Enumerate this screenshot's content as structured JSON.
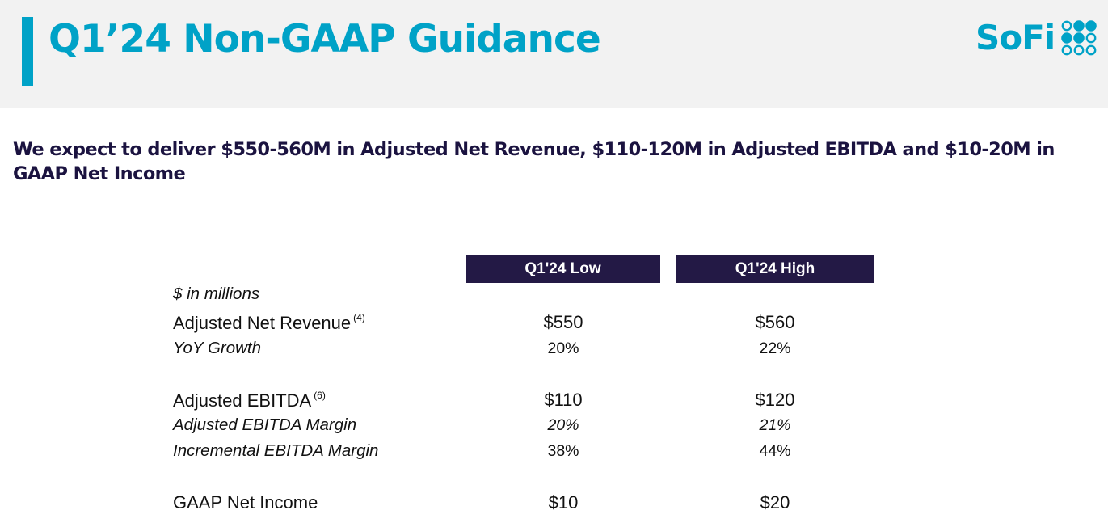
{
  "header": {
    "title": "Q1’24 Non-GAAP Guidance",
    "logo_text": "SoFi",
    "logo_mark": "dot-grid-icon",
    "accent_color": "#00a2c7"
  },
  "subtitle": "We expect to deliver $550-560M in Adjusted Net Revenue, $110-120M in Adjusted EBITDA and $10-20M in GAAP Net Income",
  "table": {
    "units_label": "$ in millions",
    "columns": [
      "Q1'24 Low",
      "Q1'24 High"
    ],
    "header_color": "#231945",
    "rows": [
      {
        "label": "Adjusted Net Revenue",
        "footnote": "(4)",
        "low": "$550",
        "high": "$560"
      },
      {
        "label": "YoY Growth",
        "low": "20%",
        "high": "22%"
      },
      {
        "label": "Adjusted EBITDA",
        "footnote": "(6)",
        "low": "$110",
        "high": "$120"
      },
      {
        "label": "Adjusted EBITDA Margin",
        "low": "20%",
        "high": "21%"
      },
      {
        "label": "Incremental EBITDA Margin",
        "low": "38%",
        "high": "44%"
      },
      {
        "label": "GAAP Net Income",
        "low": "$10",
        "high": "$20"
      }
    ]
  }
}
